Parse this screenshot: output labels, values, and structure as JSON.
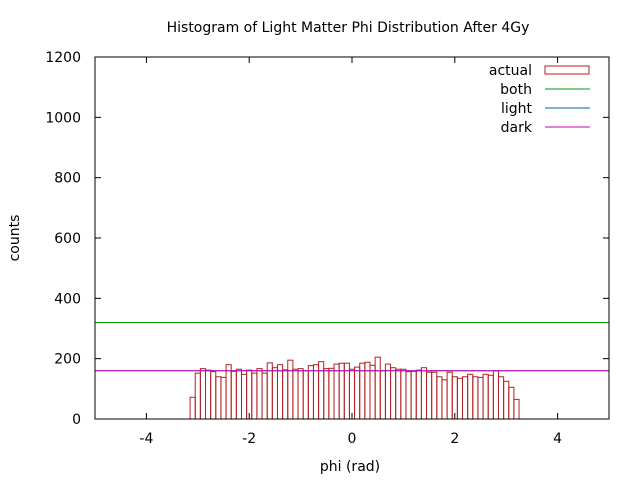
{
  "chart_data": {
    "type": "bar",
    "title": "Histogram of Light Matter Phi Distribution After 4Gy",
    "xlabel": "phi (rad)",
    "ylabel": "counts",
    "xlim": [
      -5,
      5
    ],
    "ylim": [
      0,
      1200
    ],
    "xticks": [
      -4,
      -2,
      0,
      2,
      4
    ],
    "yticks": [
      0,
      200,
      400,
      600,
      800,
      1000,
      1200
    ],
    "grid": false,
    "legend_position": "top-right",
    "bin_width": 0.1,
    "series": [
      {
        "name": "actual",
        "kind": "histogram",
        "color": "#b22222",
        "bin_starts": [
          -3.15,
          -3.05,
          -2.95,
          -2.85,
          -2.75,
          -2.65,
          -2.55,
          -2.45,
          -2.35,
          -2.25,
          -2.15,
          -2.05,
          -1.95,
          -1.85,
          -1.75,
          -1.65,
          -1.55,
          -1.45,
          -1.35,
          -1.25,
          -1.15,
          -1.05,
          -0.95,
          -0.85,
          -0.75,
          -0.65,
          -0.55,
          -0.45,
          -0.35,
          -0.25,
          -0.15,
          -0.05,
          0.05,
          0.15,
          0.25,
          0.35,
          0.45,
          0.55,
          0.65,
          0.75,
          0.85,
          0.95,
          1.05,
          1.15,
          1.25,
          1.35,
          1.45,
          1.55,
          1.65,
          1.75,
          1.85,
          1.95,
          2.05,
          2.15,
          2.25,
          2.35,
          2.45,
          2.55,
          2.65,
          2.75,
          2.85,
          2.95,
          3.05,
          3.15
        ],
        "values": [
          72,
          152,
          167,
          162,
          157,
          140,
          138,
          180,
          158,
          165,
          148,
          162,
          152,
          167,
          152,
          186,
          170,
          180,
          163,
          195,
          165,
          167,
          160,
          177,
          180,
          190,
          167,
          168,
          182,
          185,
          185,
          165,
          172,
          185,
          188,
          178,
          205,
          160,
          182,
          170,
          165,
          165,
          157,
          158,
          162,
          170,
          155,
          155,
          140,
          130,
          155,
          140,
          135,
          140,
          148,
          140,
          138,
          148,
          145,
          160,
          140,
          125,
          105,
          65
        ]
      },
      {
        "name": "both",
        "kind": "line",
        "color": "#009900",
        "value": 320
      },
      {
        "name": "light",
        "kind": "line",
        "color": "#0060ad",
        "value": 160
      },
      {
        "name": "dark",
        "kind": "line",
        "color": "#cc00aa",
        "value": 160
      }
    ]
  }
}
